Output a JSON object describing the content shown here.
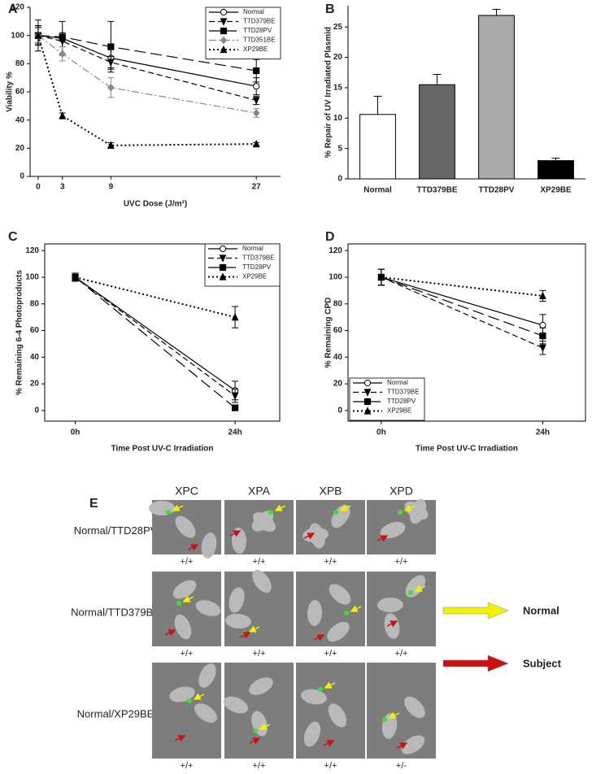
{
  "chart_data": [
    {
      "type": "line",
      "label": "A",
      "xlabel": "UVC Dose (J/m²)",
      "ylabel": "Viability %",
      "x": [
        0,
        3,
        9,
        27
      ],
      "xlim": [
        -1,
        30
      ],
      "xticks": [
        0,
        3,
        9,
        27
      ],
      "ylim": [
        0,
        120
      ],
      "yticks": [
        0,
        20,
        40,
        60,
        80,
        100,
        120
      ],
      "legend": "upper right",
      "series": [
        {
          "name": "Normal",
          "color": "#000000",
          "marker": "circle",
          "dash": "solid",
          "values": [
            100,
            98,
            84,
            64
          ],
          "errors": [
            11,
            12,
            8,
            6
          ]
        },
        {
          "name": "TTD379BE",
          "color": "#000000",
          "marker": "triangle-down",
          "dash": "dash",
          "values": [
            100,
            96,
            81,
            54
          ],
          "errors": [
            6,
            4,
            4,
            3
          ]
        },
        {
          "name": "TTD28PV",
          "color": "#000000",
          "marker": "square",
          "dash": "longdash",
          "values": [
            100,
            99,
            92,
            75
          ],
          "errors": [
            5,
            3,
            18,
            8
          ]
        },
        {
          "name": "TTD351BE",
          "color": "#888888",
          "marker": "diamond",
          "dash": "dashdot",
          "values": [
            100,
            87,
            63,
            45
          ],
          "errors": [
            5,
            5,
            7,
            3
          ]
        },
        {
          "name": "XP29BE",
          "color": "#000000",
          "marker": "triangle",
          "dash": "dot",
          "values": [
            100,
            43,
            22,
            23
          ],
          "errors": [
            7,
            2,
            2,
            1
          ]
        }
      ]
    },
    {
      "type": "bar",
      "label": "B",
      "ylabel": "% Repair of UV Irradiated Plasmid",
      "categories": [
        "Normal",
        "TTD379BE",
        "TTD28PV",
        "XP29BE"
      ],
      "values": [
        10.6,
        15.5,
        26.9,
        3.0
      ],
      "errors": [
        3.0,
        1.7,
        1.0,
        0.4
      ],
      "colors": [
        "#ffffff",
        "#666666",
        "#aaaaaa",
        "#000000"
      ],
      "ylim": [
        0,
        28.5
      ],
      "yticks": [
        0,
        5,
        10,
        15,
        20,
        25
      ]
    },
    {
      "type": "line",
      "label": "C",
      "xlabel": "Time Post UV-C Irradiation",
      "ylabel": "% Remaining 6-4 Photoproducts",
      "categories": [
        "0h",
        "24h"
      ],
      "ylim": [
        -8,
        125
      ],
      "yticks": [
        0,
        20,
        40,
        60,
        80,
        100,
        120
      ],
      "legend": "upper right",
      "series": [
        {
          "name": "Normal",
          "color": "#000000",
          "marker": "circle",
          "dash": "solid",
          "values": [
            100,
            15
          ],
          "errors": [
            3,
            7
          ]
        },
        {
          "name": "TTD379BE",
          "color": "#000000",
          "marker": "triangle-down",
          "dash": "dash",
          "values": [
            100,
            11
          ],
          "errors": [
            3,
            5
          ]
        },
        {
          "name": "TTD28PV",
          "color": "#000000",
          "marker": "square",
          "dash": "longdash",
          "values": [
            100,
            2
          ],
          "errors": [
            3,
            1
          ]
        },
        {
          "name": "XP29BE",
          "color": "#000000",
          "marker": "triangle",
          "dash": "dot",
          "values": [
            100,
            70
          ],
          "errors": [
            3,
            8
          ]
        }
      ]
    },
    {
      "type": "line",
      "label": "D",
      "xlabel": "Time Post UV-C Irradiation",
      "ylabel": "% Remaining CPD",
      "categories": [
        "0h",
        "24h"
      ],
      "ylim": [
        -8,
        125
      ],
      "yticks": [
        0,
        20,
        40,
        60,
        80,
        100,
        120
      ],
      "legend": "lower left",
      "series": [
        {
          "name": "Normal",
          "color": "#000000",
          "marker": "circle",
          "dash": "solid",
          "values": [
            100,
            64
          ],
          "errors": [
            6,
            8
          ]
        },
        {
          "name": "TTD379BE",
          "color": "#000000",
          "marker": "triangle-down",
          "dash": "dash",
          "values": [
            100,
            47
          ],
          "errors": [
            6,
            5
          ]
        },
        {
          "name": "TTD28PV",
          "color": "#000000",
          "marker": "square",
          "dash": "longdash",
          "values": [
            100,
            56
          ],
          "errors": [
            6,
            6
          ]
        },
        {
          "name": "XP29BE",
          "color": "#000000",
          "marker": "triangle",
          "dash": "dot",
          "values": [
            100,
            86
          ],
          "errors": [
            6,
            4
          ]
        }
      ]
    }
  ],
  "panel_e": {
    "label": "E",
    "columns": [
      "XPC",
      "XPA",
      "XPB",
      "XPD"
    ],
    "rows": [
      {
        "label": "Normal/TTD28PV",
        "genotypes": [
          "+/+",
          "+/+",
          "+/+",
          "+/+"
        ]
      },
      {
        "label": "Normal/TTD379BE",
        "genotypes": [
          "+/+",
          "+/+",
          "+/+",
          "+/+"
        ]
      },
      {
        "label": "Normal/XP29BE",
        "genotypes": [
          "+/+",
          "+/+",
          "+/+",
          "+/-"
        ]
      }
    ],
    "legend": [
      {
        "label": "Normal",
        "color": "#f2f200"
      },
      {
        "label": "Subject",
        "color": "#cc1111"
      }
    ]
  }
}
